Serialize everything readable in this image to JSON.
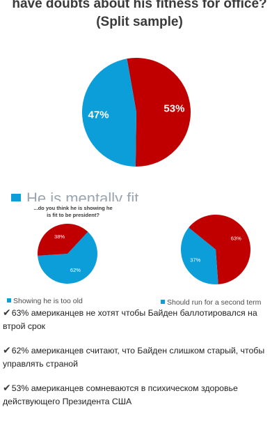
{
  "chart_data": [
    {
      "type": "pie",
      "title_lines": [
        "have doubts about his fitness for office?",
        "(Split sample)"
      ],
      "slices": [
        {
          "label": "53%",
          "value": 53,
          "color": "#c00000"
        },
        {
          "label": "47%",
          "value": 47,
          "color": "#0b9ed9"
        }
      ],
      "legend": [
        {
          "text": "He is mentally fit",
          "color": "#0b9ed9"
        }
      ]
    },
    {
      "type": "pie",
      "title_lines": [
        "...do you think he is showing he",
        "is fit to be president?"
      ],
      "slices": [
        {
          "label": "62%",
          "value": 62,
          "color": "#0b9ed9"
        },
        {
          "label": "38%",
          "value": 38,
          "color": "#c00000"
        }
      ],
      "legend": [
        {
          "text": "Showing he is too old",
          "color": "#0b9ed9"
        }
      ]
    },
    {
      "type": "pie",
      "slices": [
        {
          "label": "63%",
          "value": 63,
          "color": "#c00000"
        },
        {
          "label": "37%",
          "value": 37,
          "color": "#0b9ed9"
        }
      ],
      "legend": [
        {
          "text": "Should run for a second term",
          "color": "#0b9ed9"
        }
      ]
    }
  ],
  "bullets": [
    {
      "check": "✔",
      "text": "63% американцев не хотят чтобы Байден баллотировался на втрой срок"
    },
    {
      "check": "✔",
      "text": "62% американцев считают, что Байден слишком старый, чтобы управлять страной"
    },
    {
      "check": "✔",
      "text": "53% американцев сомневаются в психическом здоровье действующего Президента США"
    }
  ]
}
